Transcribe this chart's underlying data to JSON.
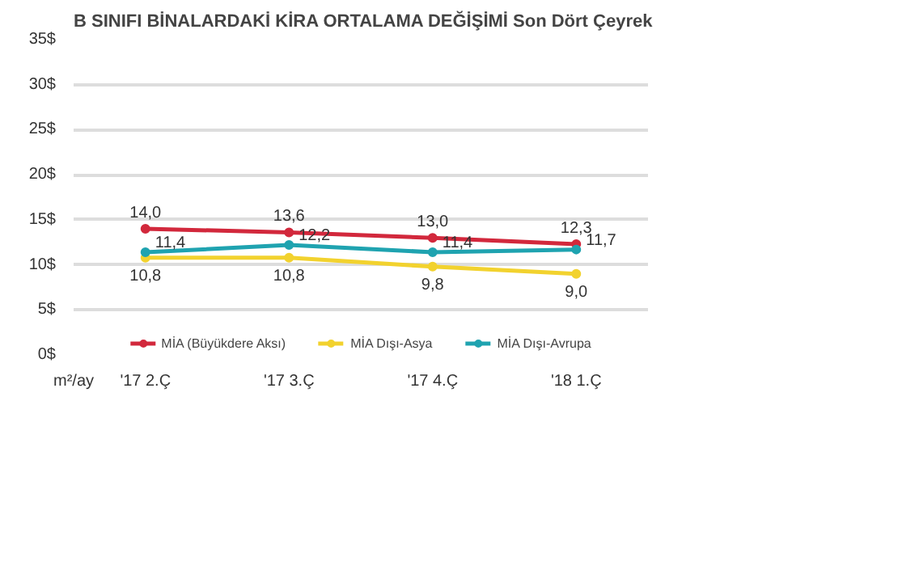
{
  "chart_data": {
    "type": "line",
    "title": "B SINIFI BİNALARDAKİ KİRA ORTALAMA DEĞİŞİMİ Son Dört Çeyrek",
    "ylabel": "m²/ay",
    "categories": [
      "'17 2.Ç",
      "'17 3.Ç",
      "'17 4.Ç",
      "'18 1.Ç"
    ],
    "series": [
      {
        "name": "MİA (Büyükdere Aksı)",
        "color": "#d2283c",
        "values": [
          14.0,
          13.6,
          13.0,
          12.3
        ],
        "value_labels": [
          "14,0",
          "13,6",
          "13,0",
          "12,3"
        ]
      },
      {
        "name": "MİA Dışı-Asya",
        "color": "#f2d22e",
        "values": [
          10.8,
          10.8,
          9.8,
          9.0
        ],
        "value_labels": [
          "10,8",
          "10,8",
          "9,8",
          "9,0"
        ]
      },
      {
        "name": "MİA Dışı-Avrupa",
        "color": "#1fa3b0",
        "values": [
          11.4,
          12.2,
          11.4,
          11.7
        ],
        "value_labels": [
          "11,4",
          "12,2",
          "11,4",
          "11,7"
        ]
      }
    ],
    "ylim": [
      0,
      35
    ],
    "yticks": [
      {
        "value": 0,
        "label": "0$"
      },
      {
        "value": 5,
        "label": "5$"
      },
      {
        "value": 10,
        "label": "10$"
      },
      {
        "value": 15,
        "label": "15$"
      },
      {
        "value": 20,
        "label": "20$"
      },
      {
        "value": 25,
        "label": "25$"
      },
      {
        "value": 30,
        "label": "30$"
      },
      {
        "value": 35,
        "label": "35$"
      }
    ],
    "grid": "y",
    "legend": "bottom",
    "marker": "circle",
    "line_style": "solid"
  }
}
